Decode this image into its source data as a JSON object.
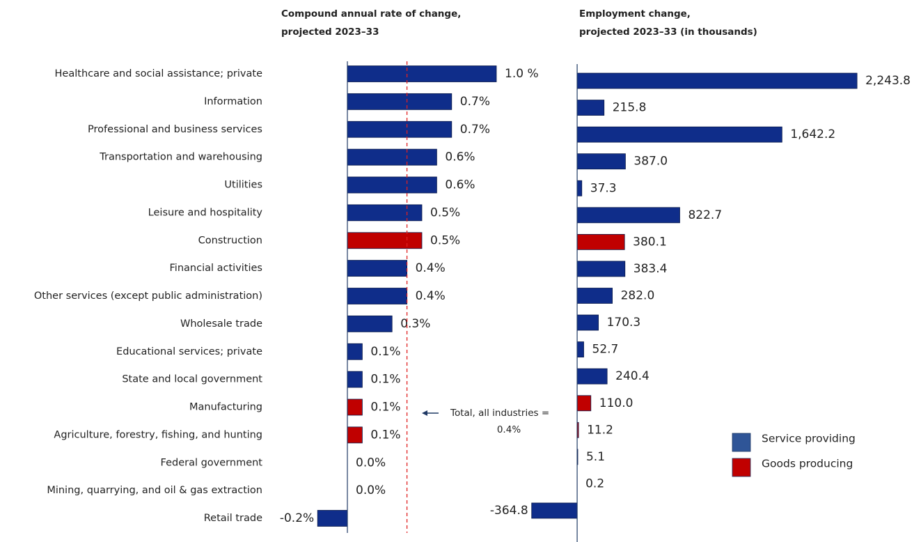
{
  "chart_data": {
    "type": "bar",
    "orientation": "horizontal",
    "categories": [
      "Healthcare and social assistance; private",
      "Information",
      "Professional and business services",
      "Transportation and warehousing",
      "Utilities",
      "Leisure and hospitality",
      "Construction",
      "Financial activities",
      "Other services (except public administration)",
      "Wholesale trade",
      "Educational services; private",
      "State and local government",
      "Manufacturing",
      "Agriculture, forestry, fishing, and hunting",
      "Federal government",
      "Mining, quarrying, and oil & gas extraction",
      "Retail trade"
    ],
    "colors": [
      "#0f2d8a",
      "#0f2d8a",
      "#0f2d8a",
      "#0f2d8a",
      "#0f2d8a",
      "#0f2d8a",
      "#c00000",
      "#0f2d8a",
      "#0f2d8a",
      "#0f2d8a",
      "#0f2d8a",
      "#0f2d8a",
      "#c00000",
      "#c00000",
      "#0f2d8a",
      "#c00000",
      "#0f2d8a"
    ],
    "legend": [
      {
        "name": "Service providing",
        "color": "#2f5597"
      },
      {
        "name": "Goods producing",
        "color": "#c00000"
      }
    ],
    "panels": [
      {
        "title": [
          "Compound annual rate of change,",
          "projected 2023–33"
        ],
        "values": [
          1.0,
          0.7,
          0.7,
          0.6,
          0.6,
          0.5,
          0.5,
          0.4,
          0.4,
          0.3,
          0.1,
          0.1,
          0.1,
          0.1,
          0.0,
          0.0,
          -0.2
        ],
        "value_labels": [
          "1.0 %",
          "0.7%",
          "0.7%",
          "0.6%",
          "0.6%",
          "0.5%",
          "0.5%",
          "0.4%",
          "0.4%",
          "0.3%",
          "0.1%",
          "0.1%",
          "0.1%",
          "0.1%",
          "0.0%",
          "0.0%",
          "-0.2%"
        ],
        "xlim": [
          -0.25,
          1.05
        ],
        "reference_line": {
          "value": 0.4,
          "label": [
            "Total, all industries =",
            "0.4%"
          ],
          "color": "#e02020"
        }
      },
      {
        "title": [
          "Employment change,",
          "projected 2023–33 (in thousands)"
        ],
        "values": [
          2243.8,
          215.8,
          1642.2,
          387.0,
          37.3,
          822.7,
          380.1,
          383.4,
          282.0,
          170.3,
          52.7,
          240.4,
          110.0,
          11.2,
          5.1,
          0.2,
          -364.8
        ],
        "value_labels": [
          "2,243.8",
          "215.8",
          "1,642.2",
          "387.0",
          "37.3",
          "822.7",
          "380.1",
          "383.4",
          "282.0",
          "170.3",
          "52.7",
          "240.4",
          "110.0",
          "11.2",
          "5.1",
          "0.2",
          "-364.8"
        ],
        "xlim": [
          -400,
          2400
        ]
      }
    ]
  }
}
